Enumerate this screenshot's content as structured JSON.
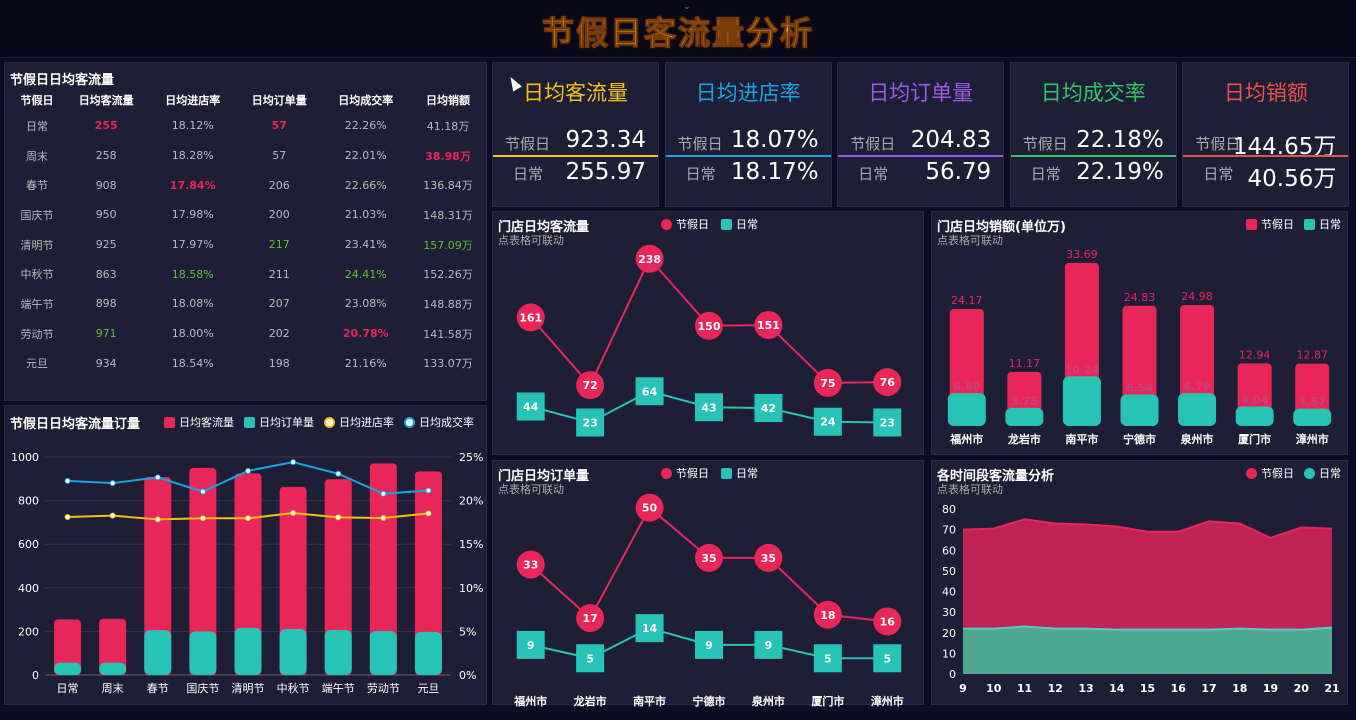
{
  "title": "节假日客流量分析",
  "colors": {
    "red": "#e8265a",
    "teal": "#27c4b5",
    "yellow": "#f5c115",
    "blue": "#15a6e0",
    "purple": "#9a5ce6",
    "green": "#2fc56b",
    "orange": "#e8524a"
  },
  "table": {
    "title": "节假日日均客流量",
    "headers": [
      "节假日",
      "日均客流量",
      "日均进店率",
      "日均订单量",
      "日均成交率",
      "日均销额"
    ],
    "rows": [
      [
        "日常",
        "255",
        "18.12%",
        "57",
        "22.26%",
        "41.18万"
      ],
      [
        "周末",
        "258",
        "18.28%",
        "57",
        "22.01%",
        "38.98万"
      ],
      [
        "春节",
        "908",
        "17.84%",
        "206",
        "22.66%",
        "136.84万"
      ],
      [
        "国庆节",
        "950",
        "17.98%",
        "200",
        "21.03%",
        "148.31万"
      ],
      [
        "清明节",
        "925",
        "17.97%",
        "217",
        "23.41%",
        "157.09万"
      ],
      [
        "中秋节",
        "863",
        "18.58%",
        "211",
        "24.41%",
        "152.26万"
      ],
      [
        "端午节",
        "898",
        "18.08%",
        "207",
        "23.08%",
        "148.88万"
      ],
      [
        "劳动节",
        "971",
        "18.00%",
        "202",
        "20.78%",
        "141.58万"
      ],
      [
        "元旦",
        "934",
        "18.54%",
        "198",
        "21.16%",
        "133.07万"
      ]
    ]
  },
  "kpis": [
    {
      "title": "日均客流量",
      "label_a": "节假日",
      "value_a": "923.34",
      "label_b": "日常",
      "value_b": "255.97"
    },
    {
      "title": "日均进店率",
      "label_a": "节假日",
      "value_a": "18.07%",
      "label_b": "日常",
      "value_b": "18.17%"
    },
    {
      "title": "日均订单量",
      "label_a": "节假日",
      "value_a": "204.83",
      "label_b": "日常",
      "value_b": "56.79"
    },
    {
      "title": "日均成交率",
      "label_a": "节假日",
      "value_a": "22.18%",
      "label_b": "日常",
      "value_b": "22.19%"
    },
    {
      "title": "日均销额",
      "label_a": "节假日",
      "value_a": "144.65万",
      "label_b": "日常",
      "value_b": "40.56万"
    }
  ],
  "legend": {
    "holiday": "节假日",
    "normal": "日常",
    "flow": "日均客流量",
    "orders": "日均订单量",
    "enter": "日均进店率",
    "deal": "日均成交率"
  },
  "sub_linkable": "点表格可联动",
  "chart_data": [
    {
      "id": "combo",
      "type": "bar",
      "title": "节假日日均客流量订量",
      "categories": [
        "日常",
        "周末",
        "春节",
        "国庆节",
        "清明节",
        "中秋节",
        "端午节",
        "劳动节",
        "元旦"
      ],
      "series": [
        {
          "name": "日均客流量",
          "values": [
            255,
            258,
            908,
            950,
            925,
            863,
            898,
            971,
            934
          ]
        },
        {
          "name": "日均订单量",
          "values": [
            57,
            57,
            206,
            200,
            217,
            211,
            207,
            202,
            198
          ]
        },
        {
          "name": "日均进店率",
          "values": [
            18.12,
            18.28,
            17.84,
            17.98,
            17.97,
            18.58,
            18.08,
            18.0,
            18.54
          ]
        },
        {
          "name": "日均成交率",
          "values": [
            22.26,
            22.01,
            22.66,
            21.03,
            23.41,
            24.41,
            23.08,
            20.78,
            21.16
          ]
        }
      ],
      "ylim": [
        0,
        1000
      ],
      "yticks": [
        "0",
        "200",
        "400",
        "600",
        "800",
        "1000"
      ],
      "y2lim": [
        0,
        25
      ],
      "y2ticks": [
        "0%",
        "5%",
        "10%",
        "15%",
        "20%",
        "25%"
      ]
    },
    {
      "id": "storeflow",
      "type": "line",
      "title": "门店日均客流量",
      "categories": [
        "福州市",
        "龙岩市",
        "南平市",
        "宁德市",
        "泉州市",
        "厦门市",
        "漳州市"
      ],
      "series": [
        {
          "name": "节假日",
          "values": [
            161,
            72,
            238,
            150,
            151,
            75,
            76
          ]
        },
        {
          "name": "日常",
          "values": [
            44,
            23,
            64,
            43,
            42,
            24,
            23
          ]
        }
      ],
      "ylim": [
        0,
        260
      ]
    },
    {
      "id": "storesales",
      "type": "bar",
      "title": "门店日均销额(单位万)",
      "categories": [
        "福州市",
        "龙岩市",
        "南平市",
        "宁德市",
        "泉州市",
        "厦门市",
        "漳州市"
      ],
      "series": [
        {
          "name": "节假日",
          "values": [
            "24.17",
            "11.17",
            "33.69",
            "24.83",
            "24.98",
            "12.94",
            "12.87"
          ]
        },
        {
          "name": "日常",
          "values": [
            "6.80",
            "3.75",
            "10.24",
            "6.54",
            "6.79",
            "4.04",
            "3.57"
          ]
        }
      ],
      "ylim": [
        0,
        38
      ]
    },
    {
      "id": "storeorders",
      "type": "line",
      "title": "门店日均订单量",
      "categories": [
        "福州市",
        "龙岩市",
        "南平市",
        "宁德市",
        "泉州市",
        "厦门市",
        "漳州市"
      ],
      "series": [
        {
          "name": "节假日",
          "values": [
            33,
            17,
            50,
            35,
            35,
            18,
            16
          ]
        },
        {
          "name": "日常",
          "values": [
            9,
            5,
            14,
            9,
            9,
            5,
            5
          ]
        }
      ],
      "ylim": [
        0,
        55
      ]
    },
    {
      "id": "timeflow",
      "type": "area",
      "title": "各时间段客流量分析",
      "x": [
        "9",
        "10",
        "11",
        "12",
        "13",
        "14",
        "15",
        "16",
        "17",
        "18",
        "19",
        "20",
        "21"
      ],
      "series": [
        {
          "name": "节假日",
          "values": [
            70,
            70.5,
            75,
            73,
            72.5,
            71.5,
            69,
            69,
            74,
            73,
            66,
            71,
            70.5
          ]
        },
        {
          "name": "日常",
          "values": [
            22,
            22,
            23,
            22,
            22,
            21.5,
            21.5,
            21.5,
            21.5,
            22,
            21.5,
            21.5,
            22.5
          ]
        }
      ],
      "ylim": [
        0,
        80
      ],
      "yticks": [
        "0",
        "10",
        "20",
        "30",
        "40",
        "50",
        "60",
        "70",
        "80"
      ]
    }
  ]
}
